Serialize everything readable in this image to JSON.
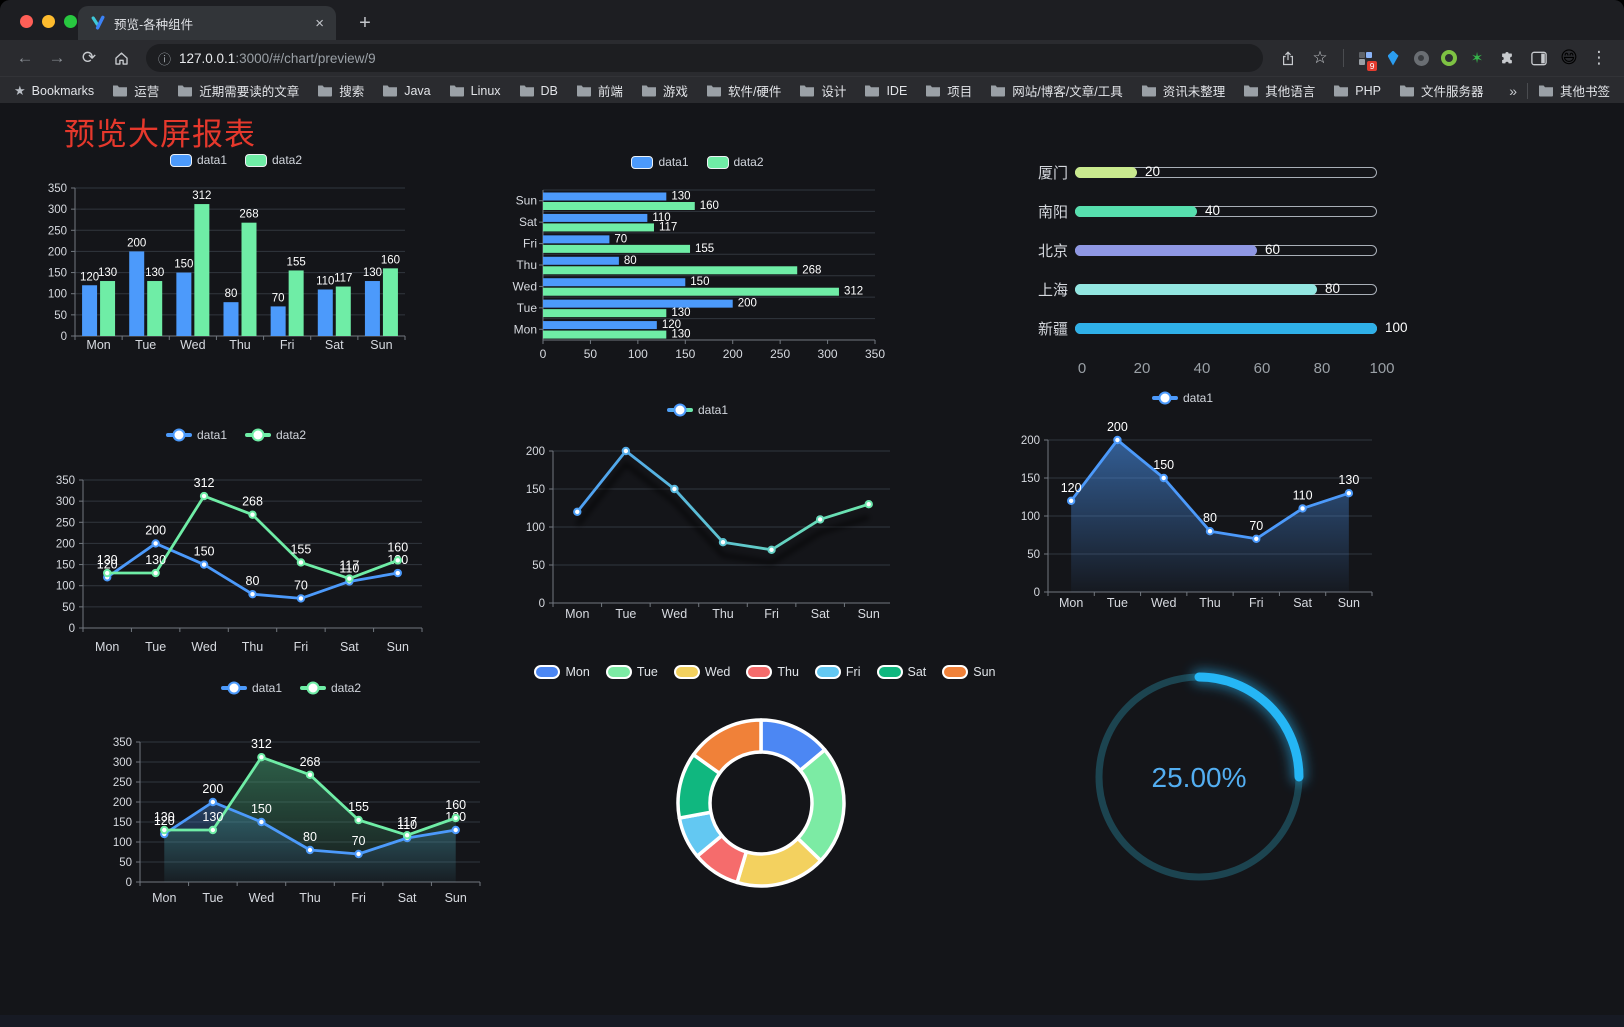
{
  "browser": {
    "tab_title": "预览-各种组件",
    "url_host": "127.0.0.1",
    "url_path": ":3000/#/chart/preview/9",
    "bookmarks_label": "Bookmarks",
    "bookmark_folders": [
      "运营",
      "近期需要读的文章",
      "搜索",
      "Java",
      "Linux",
      "DB",
      "前端",
      "游戏",
      "软件/硬件",
      "设计",
      "IDE",
      "项目",
      "网站/博客/文章/工具",
      "资讯未整理",
      "其他语言",
      "PHP",
      "文件服务器"
    ],
    "bookmarks_overflow": "»",
    "other_bookmarks": "其他书签",
    "extension_badge": "9"
  },
  "icons": {
    "back": "←",
    "forward": "→",
    "reload": "⟳",
    "info": "ⓘ",
    "star_outline": "☆",
    "bookmarks_star": "★",
    "tab_close": "×",
    "new_tab": "+",
    "menu_kebab": "⋮",
    "green_star_ext": "✶",
    "avatar_emoji": "😄"
  },
  "page": {
    "title": "预览大屏报表"
  },
  "chart_data": [
    {
      "id": "bar-grouped",
      "type": "bar",
      "categories": [
        "Mon",
        "Tue",
        "Wed",
        "Thu",
        "Fri",
        "Sat",
        "Sun"
      ],
      "series": [
        {
          "name": "data1",
          "color": "#4C9AFB",
          "values": [
            120,
            200,
            150,
            80,
            70,
            110,
            130
          ]
        },
        {
          "name": "data2",
          "color": "#6FEDA6",
          "values": [
            130,
            130,
            312,
            268,
            155,
            117,
            160
          ]
        }
      ],
      "ylim": [
        0,
        350
      ],
      "y_ticks": [
        0,
        50,
        100,
        150,
        200,
        250,
        300,
        350
      ],
      "legend": [
        "data1",
        "data2"
      ],
      "show_labels": true,
      "grid": true,
      "legend_position": "top"
    },
    {
      "id": "bar-horizontal",
      "type": "bar-horizontal",
      "categories": [
        "Mon",
        "Tue",
        "Wed",
        "Thu",
        "Fri",
        "Sat",
        "Sun"
      ],
      "series": [
        {
          "name": "data1",
          "color": "#4C9AFB",
          "values": [
            120,
            200,
            150,
            80,
            70,
            110,
            130
          ]
        },
        {
          "name": "data2",
          "color": "#6FEDA6",
          "values": [
            130,
            130,
            312,
            268,
            155,
            117,
            160
          ]
        }
      ],
      "xlim": [
        0,
        350
      ],
      "x_ticks": [
        0,
        50,
        100,
        150,
        200,
        250,
        300,
        350
      ],
      "legend": [
        "data1",
        "data2"
      ],
      "show_labels": true,
      "legend_position": "top"
    },
    {
      "id": "city-progress",
      "type": "progress",
      "max": 100,
      "x_ticks": [
        0,
        20,
        40,
        60,
        80,
        100
      ],
      "items": [
        {
          "label": "厦门",
          "value": 20,
          "color": "#C9E98E"
        },
        {
          "label": "南阳",
          "value": 40,
          "color": "#57DFAE"
        },
        {
          "label": "北京",
          "value": 60,
          "color": "#8F97E3"
        },
        {
          "label": "上海",
          "value": 80,
          "color": "#93E6E1"
        },
        {
          "label": "新疆",
          "value": 100,
          "color": "#2FB0E8"
        }
      ]
    },
    {
      "id": "line-dual",
      "type": "line",
      "categories": [
        "Mon",
        "Tue",
        "Wed",
        "Thu",
        "Fri",
        "Sat",
        "Sun"
      ],
      "series": [
        {
          "name": "data1",
          "color": "#4C9AFB",
          "values": [
            120,
            200,
            150,
            80,
            70,
            110,
            130
          ]
        },
        {
          "name": "data2",
          "color": "#6FEDA6",
          "values": [
            130,
            130,
            312,
            268,
            155,
            117,
            160
          ]
        }
      ],
      "ylim": [
        0,
        350
      ],
      "y_ticks": [
        0,
        50,
        100,
        150,
        200,
        250,
        300,
        350
      ],
      "legend": [
        "data1",
        "data2"
      ],
      "show_labels": true,
      "legend_position": "top"
    },
    {
      "id": "line-gradient",
      "type": "line",
      "categories": [
        "Mon",
        "Tue",
        "Wed",
        "Thu",
        "Fri",
        "Sat",
        "Sun"
      ],
      "series": [
        {
          "name": "data1",
          "colors": [
            "#4C9AFB",
            "#6FEDA6"
          ],
          "values": [
            120,
            200,
            150,
            80,
            70,
            110,
            130
          ]
        }
      ],
      "ylim": [
        0,
        200
      ],
      "y_ticks": [
        0,
        50,
        100,
        150,
        200
      ],
      "legend": [
        "data1"
      ],
      "show_labels": false,
      "shadow": true,
      "legend_position": "top"
    },
    {
      "id": "area-single",
      "type": "line",
      "area": true,
      "categories": [
        "Mon",
        "Tue",
        "Wed",
        "Thu",
        "Fri",
        "Sat",
        "Sun"
      ],
      "series": [
        {
          "name": "data1",
          "color": "#4C9AFB",
          "values": [
            120,
            200,
            150,
            80,
            70,
            110,
            130
          ]
        }
      ],
      "ylim": [
        0,
        200
      ],
      "y_ticks": [
        0,
        50,
        100,
        150,
        200
      ],
      "legend": [
        "data1"
      ],
      "show_labels": true,
      "legend_position": "top"
    },
    {
      "id": "area-dual",
      "type": "line",
      "area": true,
      "categories": [
        "Mon",
        "Tue",
        "Wed",
        "Thu",
        "Fri",
        "Sat",
        "Sun"
      ],
      "series": [
        {
          "name": "data1",
          "color": "#4C9AFB",
          "values": [
            120,
            200,
            150,
            80,
            70,
            110,
            130
          ]
        },
        {
          "name": "data2",
          "color": "#6FEDA6",
          "values": [
            130,
            130,
            312,
            268,
            155,
            117,
            160
          ]
        }
      ],
      "ylim": [
        0,
        350
      ],
      "y_ticks": [
        0,
        50,
        100,
        150,
        200,
        250,
        300,
        350
      ],
      "legend": [
        "data1",
        "data2"
      ],
      "show_labels": true,
      "legend_position": "top"
    },
    {
      "id": "weekday-donut",
      "type": "donut",
      "legend": [
        "Mon",
        "Tue",
        "Wed",
        "Thu",
        "Fri",
        "Sat",
        "Sun"
      ],
      "slices": [
        {
          "label": "Mon",
          "value": 120,
          "color": "#4C87F3"
        },
        {
          "label": "Tue",
          "value": 200,
          "color": "#7CEBA4"
        },
        {
          "label": "Wed",
          "value": 150,
          "color": "#F3D15F"
        },
        {
          "label": "Thu",
          "value": 80,
          "color": "#F56C6C"
        },
        {
          "label": "Fri",
          "value": 70,
          "color": "#63C8F2"
        },
        {
          "label": "Sat",
          "value": 110,
          "color": "#10B77F"
        },
        {
          "label": "Sun",
          "value": 130,
          "color": "#F08139"
        }
      ]
    },
    {
      "id": "percent-gauge",
      "type": "gauge",
      "value": 25,
      "display": "25.00%",
      "color": "#25B6F5",
      "track_color": "#1C4450",
      "text_color": "#53AEF1"
    }
  ]
}
